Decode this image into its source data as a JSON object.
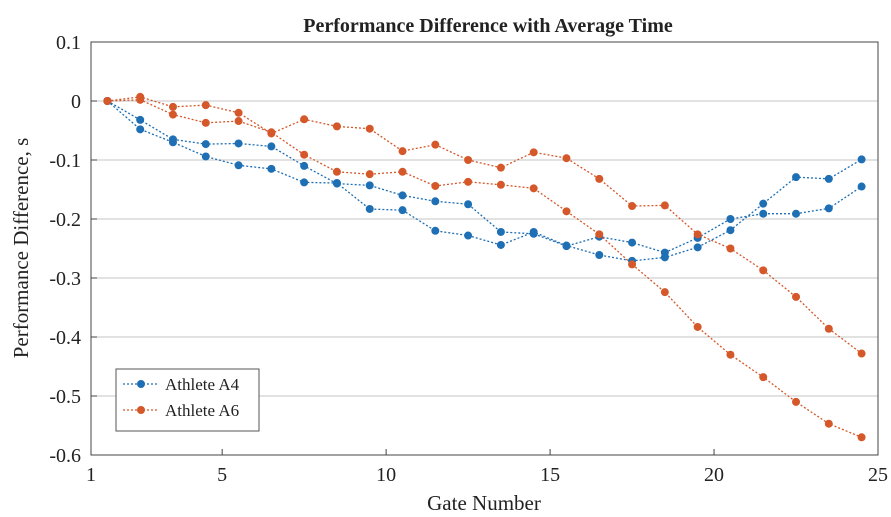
{
  "chart_data": {
    "type": "line",
    "title": "Performance Difference with Average Time",
    "xlabel": "Gate Number",
    "ylabel": "Performance Difference, s",
    "xlim": [
      1,
      25
    ],
    "ylim": [
      -0.6,
      0.1
    ],
    "xticks": [
      1,
      5,
      10,
      15,
      20,
      25
    ],
    "yticks": [
      0.1,
      0,
      -0.1,
      -0.2,
      -0.3,
      -0.4,
      -0.5,
      -0.6
    ],
    "grid": "horizontal",
    "legend_position": "bottom-left",
    "series": [
      {
        "name": "Athlete A4",
        "color": "#1f6fb4",
        "x": [
          1.5,
          2.5,
          3.5,
          4.5,
          5.5,
          6.5,
          7.5,
          8.5,
          9.5,
          10.5,
          11.5,
          12.5,
          13.5,
          14.5,
          15.5,
          16.5,
          17.5,
          18.5,
          19.5,
          20.5,
          21.5,
          22.5,
          23.5,
          24.5
        ],
        "y": [
          0,
          -0.032,
          -0.065,
          -0.073,
          -0.072,
          -0.077,
          -0.11,
          -0.14,
          -0.143,
          -0.16,
          -0.17,
          -0.175,
          -0.222,
          -0.225,
          -0.246,
          -0.23,
          -0.24,
          -0.257,
          -0.232,
          -0.2,
          -0.191,
          -0.191,
          -0.182,
          -0.145
        ]
      },
      {
        "name": "",
        "color": "#1f6fb4",
        "x": [
          1.5,
          2.5,
          3.5,
          4.5,
          5.5,
          6.5,
          7.5,
          8.5,
          9.5,
          10.5,
          11.5,
          12.5,
          13.5,
          14.5,
          15.5,
          16.5,
          17.5,
          18.5,
          19.5,
          20.5,
          21.5,
          22.5,
          23.5,
          24.5
        ],
        "y": [
          0,
          -0.048,
          -0.07,
          -0.094,
          -0.109,
          -0.115,
          -0.138,
          -0.139,
          -0.183,
          -0.185,
          -0.22,
          -0.228,
          -0.244,
          -0.222,
          -0.245,
          -0.261,
          -0.271,
          -0.265,
          -0.248,
          -0.219,
          -0.174,
          -0.129,
          -0.132,
          -0.099
        ]
      },
      {
        "name": "Athlete A6",
        "color": "#d4582a",
        "x": [
          1.5,
          2.5,
          3.5,
          4.5,
          5.5,
          6.5,
          7.5,
          8.5,
          9.5,
          10.5,
          11.5,
          12.5,
          13.5,
          14.5,
          15.5,
          16.5,
          17.5,
          18.5,
          19.5,
          20.5,
          21.5,
          22.5,
          23.5,
          24.5
        ],
        "y": [
          0,
          0.007,
          -0.01,
          -0.007,
          -0.02,
          -0.055,
          -0.031,
          -0.043,
          -0.047,
          -0.085,
          -0.074,
          -0.1,
          -0.113,
          -0.087,
          -0.097,
          -0.132,
          -0.178,
          -0.177,
          -0.226,
          -0.25,
          -0.287,
          -0.332,
          -0.386,
          -0.428
        ]
      },
      {
        "name": "",
        "color": "#d4582a",
        "x": [
          1.5,
          2.5,
          3.5,
          4.5,
          5.5,
          6.5,
          7.5,
          8.5,
          9.5,
          10.5,
          11.5,
          12.5,
          13.5,
          14.5,
          15.5,
          16.5,
          17.5,
          18.5,
          19.5,
          20.5,
          21.5,
          22.5,
          23.5,
          24.5
        ],
        "y": [
          0,
          0.002,
          -0.023,
          -0.037,
          -0.034,
          -0.053,
          -0.091,
          -0.12,
          -0.124,
          -0.12,
          -0.144,
          -0.137,
          -0.142,
          -0.148,
          -0.187,
          -0.226,
          -0.277,
          -0.324,
          -0.383,
          -0.43,
          -0.468,
          -0.51,
          -0.547,
          -0.57
        ]
      }
    ]
  }
}
